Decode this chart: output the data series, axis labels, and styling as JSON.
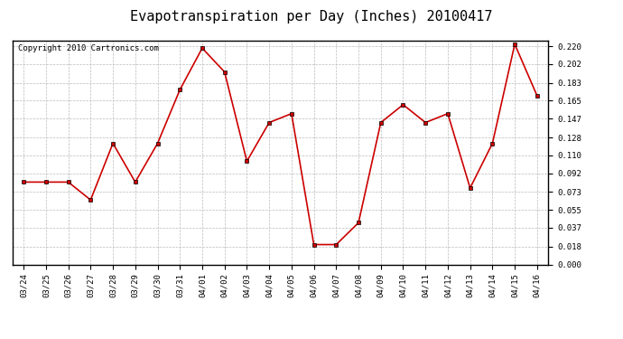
{
  "title": "Evapotranspiration per Day (Inches) 20100417",
  "copyright": "Copyright 2010 Cartronics.com",
  "dates": [
    "03/24",
    "03/25",
    "03/26",
    "03/27",
    "03/28",
    "03/29",
    "03/30",
    "03/31",
    "04/01",
    "04/02",
    "04/03",
    "04/04",
    "04/05",
    "04/06",
    "04/07",
    "04/08",
    "04/09",
    "04/10",
    "04/11",
    "04/12",
    "04/13",
    "04/14",
    "04/15",
    "04/16"
  ],
  "values": [
    0.083,
    0.083,
    0.083,
    0.065,
    0.122,
    0.083,
    0.122,
    0.176,
    0.218,
    0.194,
    0.104,
    0.143,
    0.152,
    0.02,
    0.02,
    0.042,
    0.143,
    0.161,
    0.143,
    0.152,
    0.077,
    0.122,
    0.222,
    0.17
  ],
  "line_color": "#cc0000",
  "marker": "s",
  "marker_size": 3,
  "bg_color": "#ffffff",
  "grid_color": "#bbbbbb",
  "ylim": [
    0.0,
    0.2255
  ],
  "yticks": [
    0.0,
    0.018,
    0.037,
    0.055,
    0.073,
    0.092,
    0.11,
    0.128,
    0.147,
    0.165,
    0.183,
    0.202,
    0.22
  ],
  "title_fontsize": 11,
  "copyright_fontsize": 6.5,
  "tick_fontsize": 6.5
}
